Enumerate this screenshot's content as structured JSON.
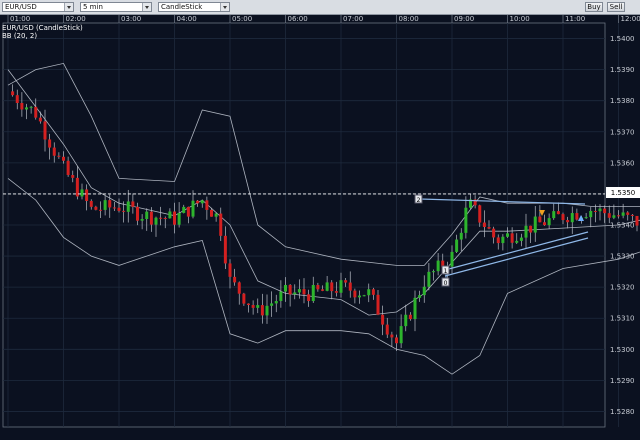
{
  "toolbar": {
    "symbol_value": "EUR/USD",
    "interval_value": "5 min",
    "chart_type_value": "CandleStick",
    "buy_label": "Buy",
    "sell_label": "Sell"
  },
  "legend": {
    "series_label": "EUR/USD (CandleStick)",
    "indicator_label": "BB (20, 2)"
  },
  "colors": {
    "background": "#0b1120",
    "grid": "#1e2a3d",
    "bull_candle": "#2db52d",
    "bear_candle": "#d42020",
    "bollinger": "#aeb4bf",
    "trendline": "#8fb8e8",
    "price_line": "#ffffff"
  },
  "chart_data": {
    "type": "candlestick",
    "symbol": "EUR/USD",
    "interval": "5 min",
    "x_ticks": [
      "01:00",
      "02:00",
      "03:00",
      "04:00",
      "05:00",
      "06:00",
      "07:00",
      "08:00",
      "09:00",
      "10:00",
      "11:00",
      "12:00"
    ],
    "y_ticks": [
      "1.5400",
      "1.5390",
      "1.5380",
      "1.5370",
      "1.5360",
      "1.5350",
      "1.5340",
      "1.5330",
      "1.5320",
      "1.5310",
      "1.5300",
      "1.5290",
      "1.5280"
    ],
    "y_range": [
      1.5275,
      1.5405
    ],
    "current_price": "1.5350",
    "grid": true,
    "indicator": "Bollinger Bands (20, 2)",
    "markers": [
      "2",
      "1",
      "0"
    ],
    "close_path": [
      [
        0,
        1.5383
      ],
      [
        0.5,
        1.5376
      ],
      [
        1,
        1.5358
      ],
      [
        1.5,
        1.5345
      ],
      [
        2,
        1.5346
      ],
      [
        2.5,
        1.5343
      ],
      [
        3,
        1.5342
      ],
      [
        3.5,
        1.5348
      ],
      [
        3.8,
        1.5342
      ],
      [
        4,
        1.5322
      ],
      [
        4.5,
        1.5312
      ],
      [
        5,
        1.5318
      ],
      [
        5.5,
        1.5318
      ],
      [
        6,
        1.532
      ],
      [
        6.5,
        1.5318
      ],
      [
        7,
        1.5302
      ],
      [
        7.5,
        1.5322
      ],
      [
        8,
        1.533
      ],
      [
        8.3,
        1.5347
      ],
      [
        8.8,
        1.5335
      ],
      [
        9.5,
        1.534
      ],
      [
        10,
        1.5343
      ],
      [
        10.5,
        1.5345
      ],
      [
        11,
        1.5343
      ],
      [
        11.5,
        1.534
      ],
      [
        11.8,
        1.535
      ]
    ],
    "bb_upper": [
      [
        0,
        1.5385
      ],
      [
        0.5,
        1.539
      ],
      [
        1,
        1.5392
      ],
      [
        1.5,
        1.5375
      ],
      [
        2,
        1.5355
      ],
      [
        3,
        1.5354
      ],
      [
        3.5,
        1.5377
      ],
      [
        4,
        1.5375
      ],
      [
        4.5,
        1.534
      ],
      [
        5,
        1.5333
      ],
      [
        6,
        1.5329
      ],
      [
        7,
        1.5327
      ],
      [
        7.5,
        1.5327
      ],
      [
        8,
        1.5337
      ],
      [
        8.5,
        1.5349
      ],
      [
        9,
        1.5347
      ],
      [
        10,
        1.5347
      ],
      [
        10.5,
        1.5346
      ],
      [
        11,
        1.5346
      ],
      [
        11.5,
        1.5346
      ]
    ],
    "bb_middle": [
      [
        0,
        1.539
      ],
      [
        0.5,
        1.5378
      ],
      [
        1,
        1.5366
      ],
      [
        1.5,
        1.5352
      ],
      [
        2,
        1.5347
      ],
      [
        3,
        1.5343
      ],
      [
        3.5,
        1.5348
      ],
      [
        4,
        1.534
      ],
      [
        4.5,
        1.5322
      ],
      [
        5,
        1.5318
      ],
      [
        6,
        1.5316
      ],
      [
        6.5,
        1.5311
      ],
      [
        7,
        1.5312
      ],
      [
        7.5,
        1.5318
      ],
      [
        8,
        1.5328
      ],
      [
        8.5,
        1.5338
      ],
      [
        9,
        1.5338
      ],
      [
        10,
        1.5339
      ],
      [
        11,
        1.534
      ],
      [
        11.5,
        1.5342
      ]
    ],
    "bb_lower": [
      [
        0,
        1.5355
      ],
      [
        0.5,
        1.5348
      ],
      [
        1,
        1.5336
      ],
      [
        1.5,
        1.533
      ],
      [
        2,
        1.5327
      ],
      [
        3,
        1.5333
      ],
      [
        3.5,
        1.5335
      ],
      [
        4,
        1.5305
      ],
      [
        4.5,
        1.5302
      ],
      [
        5,
        1.5306
      ],
      [
        6,
        1.5306
      ],
      [
        6.5,
        1.5305
      ],
      [
        7,
        1.53
      ],
      [
        7.5,
        1.5298
      ],
      [
        8,
        1.5292
      ],
      [
        8.5,
        1.5298
      ],
      [
        9,
        1.5318
      ],
      [
        10,
        1.5326
      ],
      [
        11,
        1.5329
      ],
      [
        11.5,
        1.5332
      ]
    ]
  }
}
